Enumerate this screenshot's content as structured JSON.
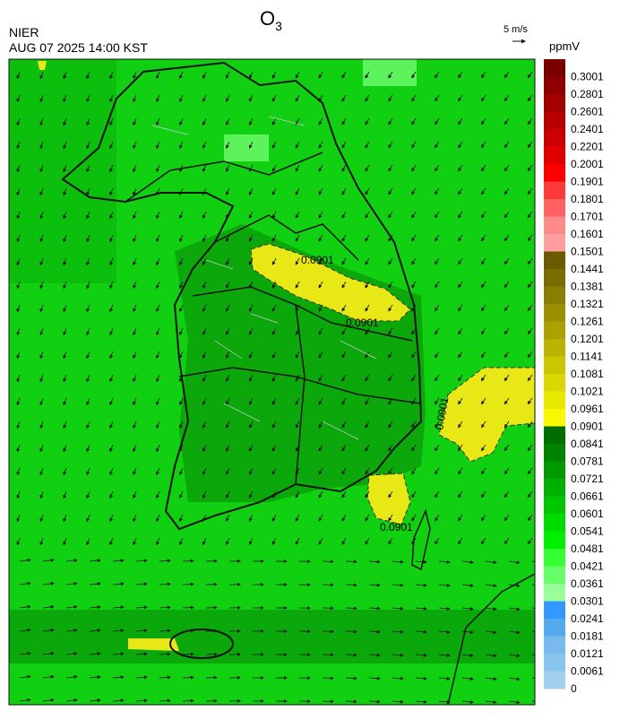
{
  "header": {
    "agency": "NIER",
    "datetime": "AUG 07 2025 14:00 KST",
    "title": {
      "main": "O",
      "subscript": "3"
    },
    "wind_scale": "5 m/s",
    "unit": "ppmV"
  },
  "colorbar": {
    "labels": [
      "0.3001",
      "0.2801",
      "0.2601",
      "0.2401",
      "0.2201",
      "0.2001",
      "0.1901",
      "0.1801",
      "0.1701",
      "0.1601",
      "0.1501",
      "0.1441",
      "0.1381",
      "0.1321",
      "0.1261",
      "0.1201",
      "0.1141",
      "0.1081",
      "0.1021",
      "0.0961",
      "0.0901",
      "0.0841",
      "0.0781",
      "0.0721",
      "0.0661",
      "0.0601",
      "0.0541",
      "0.0481",
      "0.0421",
      "0.0361",
      "0.0301",
      "0.0241",
      "0.0181",
      "0.0121",
      "0.0061",
      "0"
    ],
    "colors": [
      "#7a0000",
      "#8e0000",
      "#a30000",
      "#b80000",
      "#cc0000",
      "#e00000",
      "#ff0000",
      "#ff3a3a",
      "#ff6060",
      "#ff8a8a",
      "#ff9e9e",
      "#6b5a00",
      "#7a6c00",
      "#8a7e00",
      "#9a9000",
      "#aaa200",
      "#bab400",
      "#cac600",
      "#dad800",
      "#eaea00",
      "#f8f800",
      "#006e00",
      "#008400",
      "#009a00",
      "#00b000",
      "#00c600",
      "#00dc00",
      "#00f000",
      "#33ff33",
      "#66ff66",
      "#99ff99",
      "#3399ff",
      "#55aaee",
      "#77bbee",
      "#88c4ee",
      "#a0d0ee"
    ]
  },
  "contours": {
    "labels": [
      "0.0901",
      "0.0901",
      "0.0901",
      "0.0901"
    ]
  }
}
